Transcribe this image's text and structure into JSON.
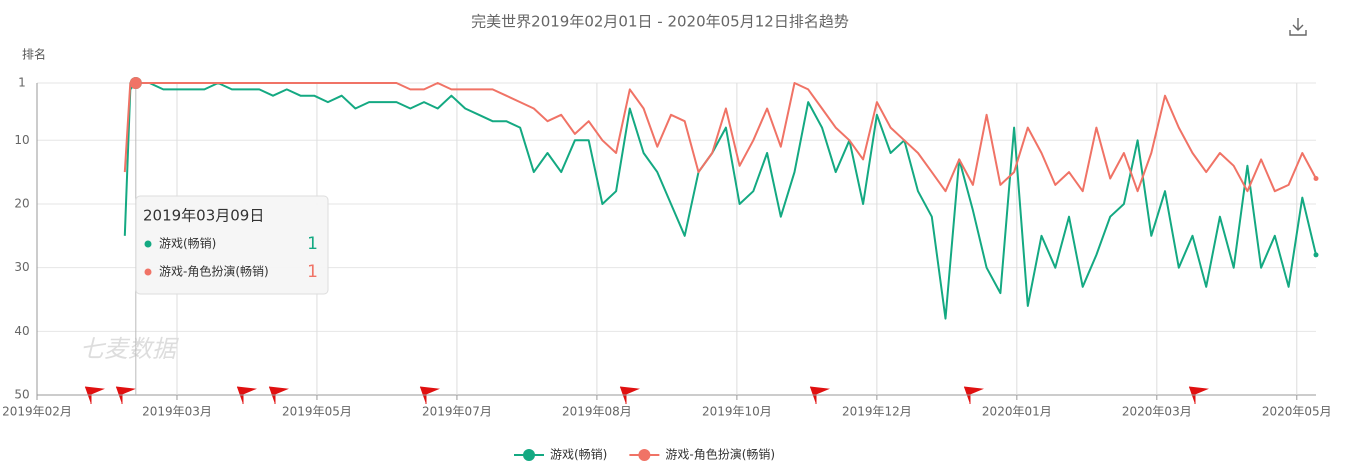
{
  "chart_data": {
    "type": "line",
    "title": "完美世界2019年02月01日 - 2020年05月12日排名趋势",
    "y_label": "排名",
    "watermark": "七麦数据",
    "y_inverted": true,
    "grid": true,
    "legend": "bottom",
    "xlim": [
      "2019-02-01",
      "2020-05-12"
    ],
    "xticks": [
      {
        "value": "2019-02-01",
        "label": "2019年02月"
      },
      {
        "value": "2019-03-24",
        "label": "2019年03月"
      },
      {
        "value": "2019-05-14",
        "label": "2019年05月"
      },
      {
        "value": "2019-07-04",
        "label": "2019年07月"
      },
      {
        "value": "2019-08-24",
        "label": "2019年08月"
      },
      {
        "value": "2019-10-14",
        "label": "2019年10月"
      },
      {
        "value": "2019-12-04",
        "label": "2019年12月"
      },
      {
        "value": "2020-01-24",
        "label": "2020年01月"
      },
      {
        "value": "2020-03-15",
        "label": "2020年03月"
      },
      {
        "value": "2020-05-05",
        "label": "2020年05月"
      }
    ],
    "ylim": [
      1,
      50
    ],
    "yticks": [
      1,
      10,
      20,
      30,
      40,
      50
    ],
    "x": [
      "2019-03-05",
      "2019-03-07",
      "2019-03-09",
      "2019-03-14",
      "2019-03-19",
      "2019-03-24",
      "2019-03-29",
      "2019-04-03",
      "2019-04-08",
      "2019-04-13",
      "2019-04-18",
      "2019-04-23",
      "2019-04-28",
      "2019-05-03",
      "2019-05-08",
      "2019-05-13",
      "2019-05-18",
      "2019-05-23",
      "2019-05-28",
      "2019-06-02",
      "2019-06-07",
      "2019-06-12",
      "2019-06-17",
      "2019-06-22",
      "2019-06-27",
      "2019-07-02",
      "2019-07-07",
      "2019-07-12",
      "2019-07-17",
      "2019-07-22",
      "2019-07-27",
      "2019-08-01",
      "2019-08-06",
      "2019-08-11",
      "2019-08-16",
      "2019-08-21",
      "2019-08-26",
      "2019-08-31",
      "2019-09-05",
      "2019-09-10",
      "2019-09-15",
      "2019-09-20",
      "2019-09-25",
      "2019-09-30",
      "2019-10-05",
      "2019-10-10",
      "2019-10-15",
      "2019-10-20",
      "2019-10-25",
      "2019-10-30",
      "2019-11-04",
      "2019-11-09",
      "2019-11-14",
      "2019-11-19",
      "2019-11-24",
      "2019-11-29",
      "2019-12-04",
      "2019-12-09",
      "2019-12-14",
      "2019-12-19",
      "2019-12-24",
      "2019-12-29",
      "2020-01-03",
      "2020-01-08",
      "2020-01-13",
      "2020-01-18",
      "2020-01-23",
      "2020-01-28",
      "2020-02-02",
      "2020-02-07",
      "2020-02-12",
      "2020-02-17",
      "2020-02-22",
      "2020-02-27",
      "2020-03-03",
      "2020-03-08",
      "2020-03-13",
      "2020-03-18",
      "2020-03-23",
      "2020-03-28",
      "2020-04-02",
      "2020-04-07",
      "2020-04-12",
      "2020-04-17",
      "2020-04-22",
      "2020-04-27",
      "2020-05-02",
      "2020-05-07",
      "2020-05-12"
    ],
    "series": [
      {
        "name": "游戏(畅销)",
        "color": "#14a982",
        "values": [
          25,
          2,
          1,
          1,
          2,
          2,
          2,
          2,
          1,
          2,
          2,
          2,
          3,
          2,
          3,
          3,
          4,
          3,
          5,
          4,
          4,
          4,
          5,
          4,
          5,
          3,
          5,
          6,
          7,
          7,
          8,
          15,
          12,
          15,
          10,
          10,
          20,
          18,
          5,
          12,
          15,
          20,
          25,
          15,
          12,
          8,
          20,
          18,
          12,
          22,
          15,
          4,
          8,
          15,
          10,
          20,
          6,
          12,
          10,
          18,
          22,
          38,
          13,
          21,
          30,
          34,
          8,
          36,
          25,
          30,
          22,
          33,
          28,
          22,
          20,
          10,
          25,
          18,
          30,
          25,
          33,
          22,
          30,
          14,
          30,
          25,
          33,
          19,
          28
        ]
      },
      {
        "name": "游戏-角色扮演(畅销)",
        "color": "#f07366",
        "values": [
          15,
          1,
          1,
          1,
          1,
          1,
          1,
          1,
          1,
          1,
          1,
          1,
          1,
          1,
          1,
          1,
          1,
          1,
          1,
          1,
          1,
          1,
          2,
          2,
          1,
          2,
          2,
          2,
          2,
          3,
          4,
          5,
          7,
          6,
          9,
          7,
          10,
          12,
          2,
          5,
          11,
          6,
          7,
          15,
          12,
          5,
          14,
          10,
          5,
          11,
          1,
          2,
          5,
          8,
          10,
          13,
          4,
          8,
          10,
          12,
          15,
          18,
          13,
          17,
          6,
          17,
          15,
          8,
          12,
          17,
          15,
          18,
          8,
          16,
          12,
          18,
          12,
          3,
          8,
          12,
          15,
          12,
          14,
          18,
          13,
          18,
          17,
          12,
          16
        ]
      }
    ],
    "tooltip": {
      "title": "2019年03月09日",
      "index": 2
    }
  }
}
